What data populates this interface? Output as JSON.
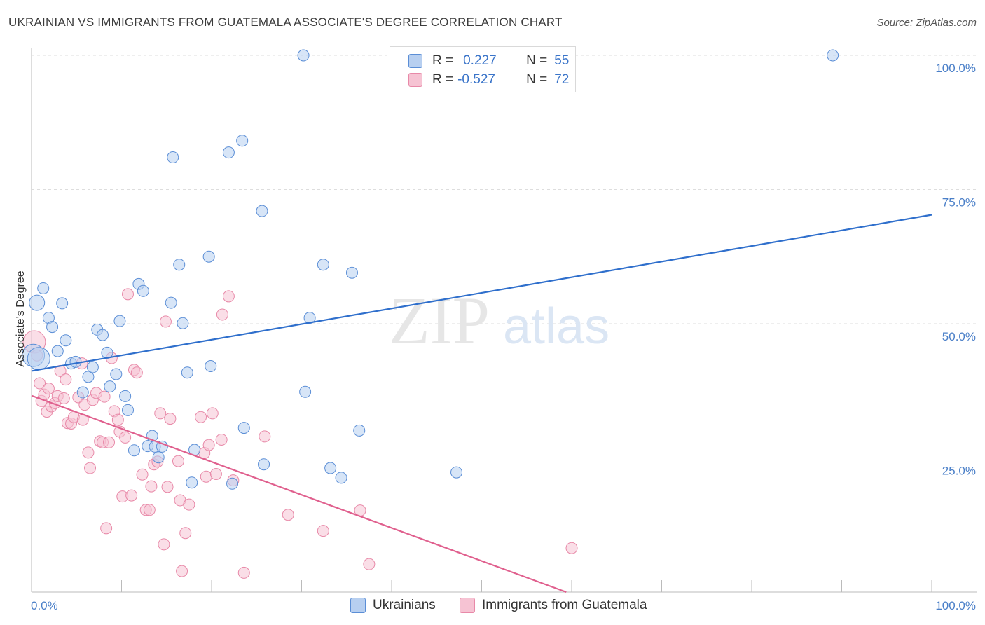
{
  "title": "UKRAINIAN VS IMMIGRANTS FROM GUATEMALA ASSOCIATE'S DEGREE CORRELATION CHART",
  "source": "Source: ZipAtlas.com",
  "legend": {
    "rows": [
      {
        "r_label": "R =",
        "r_value": "0.227",
        "n_label": "N =",
        "n_value": "55"
      },
      {
        "r_label": "R =",
        "r_value": "-0.527",
        "n_label": "N =",
        "n_value": "72"
      }
    ]
  },
  "colors": {
    "blue": "#5b8ed6",
    "blue_fill": "#b7cff0",
    "blue_line": "#2f6fcc",
    "pink": "#e889a8",
    "pink_fill": "#f6c3d3",
    "pink_line": "#e0608e",
    "axis_text": "#4a7fc8",
    "grid": "#dddddd"
  },
  "watermark": {
    "zip": "ZIP",
    "atlas": "atlas"
  },
  "chart_data": {
    "type": "scatter",
    "title": "UKRAINIAN VS IMMIGRANTS FROM GUATEMALA ASSOCIATE'S DEGREE CORRELATION CHART",
    "xlabel": "",
    "ylabel": "Associate's Degree",
    "xlim": [
      0,
      100
    ],
    "ylim": [
      0,
      100
    ],
    "x_tick_labels": [
      "0.0%",
      "100.0%"
    ],
    "y_tick_labels": [
      "25.0%",
      "50.0%",
      "75.0%",
      "100.0%"
    ],
    "y_tick_values": [
      25,
      50,
      75,
      100
    ],
    "grid": true,
    "legend_position": "top-center",
    "series": [
      {
        "name": "Ukrainians",
        "r": 0.227,
        "n": 55,
        "trend": {
          "x": [
            0,
            100
          ],
          "y": [
            41.2,
            70.3
          ]
        },
        "points": [
          [
            0.2,
            44.1
          ],
          [
            0.6,
            53.9
          ],
          [
            1.3,
            56.6
          ],
          [
            1.9,
            51.1
          ],
          [
            2.3,
            49.4
          ],
          [
            2.9,
            44.9
          ],
          [
            3.4,
            53.8
          ],
          [
            3.8,
            46.9
          ],
          [
            4.4,
            42.6
          ],
          [
            4.9,
            42.9
          ],
          [
            5.7,
            37.2
          ],
          [
            6.3,
            40.1
          ],
          [
            6.8,
            41.9
          ],
          [
            7.3,
            48.9
          ],
          [
            7.9,
            47.9
          ],
          [
            8.4,
            44.6
          ],
          [
            8.7,
            38.3
          ],
          [
            9.4,
            40.6
          ],
          [
            9.8,
            50.5
          ],
          [
            10.4,
            36.5
          ],
          [
            10.7,
            33.9
          ],
          [
            11.4,
            26.4
          ],
          [
            11.9,
            57.4
          ],
          [
            12.4,
            56.1
          ],
          [
            12.9,
            27.2
          ],
          [
            13.4,
            29.1
          ],
          [
            13.7,
            27.1
          ],
          [
            14.1,
            25.1
          ],
          [
            14.5,
            27.1
          ],
          [
            15.5,
            53.9
          ],
          [
            15.7,
            81.0
          ],
          [
            16.4,
            61.0
          ],
          [
            16.8,
            50.1
          ],
          [
            17.3,
            40.9
          ],
          [
            17.8,
            20.4
          ],
          [
            18.1,
            26.5
          ],
          [
            19.7,
            62.5
          ],
          [
            19.9,
            42.1
          ],
          [
            21.9,
            81.9
          ],
          [
            22.3,
            20.2
          ],
          [
            23.4,
            84.1
          ],
          [
            23.6,
            30.6
          ],
          [
            25.6,
            71.0
          ],
          [
            25.8,
            23.8
          ],
          [
            30.2,
            100.0
          ],
          [
            30.4,
            37.3
          ],
          [
            30.9,
            51.1
          ],
          [
            32.4,
            61.0
          ],
          [
            33.2,
            23.1
          ],
          [
            34.4,
            21.3
          ],
          [
            35.6,
            59.5
          ],
          [
            36.4,
            30.1
          ],
          [
            47.2,
            22.3
          ],
          [
            89.0,
            100.0
          ],
          [
            0.8,
            43.5
          ]
        ]
      },
      {
        "name": "Immigrants from Guatemala",
        "r": -0.527,
        "n": 72,
        "trend": {
          "x": [
            0,
            59.4
          ],
          "y": [
            36.6,
            0
          ]
        },
        "points": [
          [
            0.3,
            46.6
          ],
          [
            0.6,
            44.1
          ],
          [
            0.9,
            38.9
          ],
          [
            1.1,
            35.6
          ],
          [
            1.4,
            36.8
          ],
          [
            1.7,
            33.6
          ],
          [
            1.9,
            37.9
          ],
          [
            2.2,
            34.6
          ],
          [
            2.6,
            35.2
          ],
          [
            2.9,
            36.5
          ],
          [
            3.2,
            41.2
          ],
          [
            3.6,
            36.1
          ],
          [
            3.8,
            39.6
          ],
          [
            4.0,
            31.5
          ],
          [
            4.4,
            31.4
          ],
          [
            4.7,
            32.6
          ],
          [
            5.2,
            36.3
          ],
          [
            5.6,
            42.6
          ],
          [
            5.7,
            32.1
          ],
          [
            5.9,
            34.9
          ],
          [
            6.3,
            26.0
          ],
          [
            6.5,
            23.1
          ],
          [
            6.8,
            35.8
          ],
          [
            7.2,
            37.1
          ],
          [
            7.6,
            28.1
          ],
          [
            7.9,
            27.9
          ],
          [
            8.1,
            36.4
          ],
          [
            8.3,
            11.9
          ],
          [
            8.6,
            27.9
          ],
          [
            8.9,
            43.6
          ],
          [
            9.2,
            33.7
          ],
          [
            9.6,
            32.1
          ],
          [
            9.8,
            29.9
          ],
          [
            10.1,
            17.8
          ],
          [
            10.4,
            28.8
          ],
          [
            10.7,
            55.5
          ],
          [
            11.1,
            18.0
          ],
          [
            11.4,
            41.4
          ],
          [
            11.7,
            40.9
          ],
          [
            12.3,
            21.9
          ],
          [
            12.7,
            15.3
          ],
          [
            13.1,
            15.3
          ],
          [
            13.3,
            19.7
          ],
          [
            13.6,
            23.8
          ],
          [
            14.0,
            24.3
          ],
          [
            14.3,
            33.3
          ],
          [
            14.7,
            8.9
          ],
          [
            14.9,
            50.4
          ],
          [
            15.1,
            19.6
          ],
          [
            15.4,
            32.3
          ],
          [
            16.3,
            24.4
          ],
          [
            16.5,
            17.1
          ],
          [
            16.7,
            3.9
          ],
          [
            17.1,
            11.0
          ],
          [
            17.5,
            16.3
          ],
          [
            18.8,
            32.6
          ],
          [
            19.2,
            25.9
          ],
          [
            19.4,
            21.5
          ],
          [
            19.7,
            27.4
          ],
          [
            20.1,
            33.3
          ],
          [
            20.5,
            22.0
          ],
          [
            21.1,
            28.4
          ],
          [
            21.2,
            51.7
          ],
          [
            21.9,
            55.1
          ],
          [
            22.4,
            20.8
          ],
          [
            23.6,
            3.6
          ],
          [
            25.9,
            29.0
          ],
          [
            28.5,
            14.4
          ],
          [
            32.4,
            11.4
          ],
          [
            36.5,
            15.2
          ],
          [
            37.5,
            5.2
          ],
          [
            60.0,
            8.2
          ]
        ]
      }
    ]
  }
}
